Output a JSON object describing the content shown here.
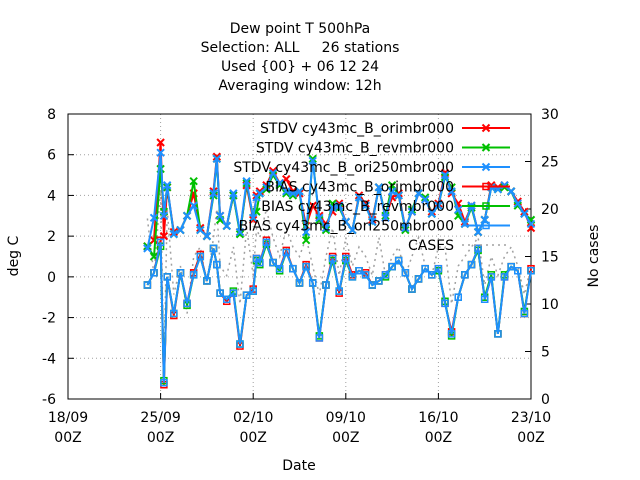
{
  "chart_data": {
    "type": "line",
    "title": [
      "Dew point T 500hPa",
      "Selection: ALL     26 stations",
      "Used {00} + 06 12 24",
      "Averaging window: 12h"
    ],
    "xlabel": "Date",
    "ylabel": "deg C",
    "y2label": "No cases",
    "ylim": [
      -6,
      8
    ],
    "y2lim": [
      0,
      30
    ],
    "yticks": [
      -6,
      -4,
      -2,
      0,
      2,
      4,
      6,
      8
    ],
    "y2ticks": [
      0,
      5,
      10,
      15,
      20,
      25,
      30
    ],
    "x_ticks": [
      {
        "day": 0,
        "line1": "18/09",
        "line2": "00Z"
      },
      {
        "day": 7,
        "line1": "25/09",
        "line2": "00Z"
      },
      {
        "day": 14,
        "line1": "02/10",
        "line2": "00Z"
      },
      {
        "day": 21,
        "line1": "09/10",
        "line2": "00Z"
      },
      {
        "day": 28,
        "line1": "16/10",
        "line2": "00Z"
      },
      {
        "day": 35,
        "line1": "23/10",
        "line2": "00Z"
      }
    ],
    "xlim_days": [
      0,
      35
    ],
    "legend_position": "top-right",
    "x_days": [
      6,
      6.5,
      7,
      7.25,
      7.5,
      8,
      8.5,
      9,
      9.5,
      10,
      10.5,
      11,
      11.25,
      11.5,
      12,
      12.5,
      13,
      13.5,
      14,
      14.25,
      14.5,
      15,
      15.5,
      16,
      16.5,
      17,
      17.5,
      18,
      18.5,
      19,
      19.5,
      20,
      20.5,
      21,
      21.5,
      22,
      22.5,
      23,
      23.5,
      24,
      24.5,
      25,
      25.5,
      26,
      26.5,
      27,
      27.5,
      28,
      28.5,
      29,
      29.5,
      30,
      30.5,
      31,
      31.5,
      32,
      32.5,
      33,
      33.5,
      34,
      34.5,
      35
    ],
    "series": [
      {
        "name": "STDV cy43mc_B_orimbr000",
        "color": "#ff0000",
        "marker": "x",
        "axis": "y",
        "values": [
          1.5,
          1.8,
          6.6,
          2.0,
          4.4,
          2.2,
          2.3,
          3.0,
          4.1,
          2.4,
          2.0,
          4.2,
          5.9,
          3.0,
          2.5,
          4.0,
          2.2,
          4.5,
          2.8,
          4.0,
          4.2,
          4.5,
          5.2,
          4.6,
          4.8,
          4.2,
          4.1,
          2.5,
          3.5,
          3.0,
          2.6,
          3.2,
          3.6,
          2.7,
          2.3,
          4.0,
          3.6,
          2.8,
          4.4,
          2.9,
          3.9,
          4.1,
          2.4,
          3.2,
          4.1,
          3.8,
          3.2,
          3.6,
          5.1,
          4.1,
          3.6,
          2.7,
          3.5,
          2.2,
          2.8,
          4.5,
          4.4,
          4.5,
          4.2,
          3.7,
          3.2,
          2.4
        ]
      },
      {
        "name": "STDV cy43mc_B_revmbr000",
        "color": "#00c000",
        "marker": "x",
        "axis": "y",
        "values": [
          1.5,
          1.0,
          5.3,
          3.2,
          4.4,
          2.1,
          2.3,
          3.0,
          4.7,
          2.3,
          2.0,
          4.0,
          5.8,
          2.8,
          2.5,
          4.0,
          2.1,
          4.6,
          2.9,
          3.2,
          4.1,
          4.3,
          5.0,
          4.5,
          4.1,
          4.0,
          4.2,
          1.8,
          5.8,
          2.8,
          2.3,
          3.6,
          3.4,
          2.7,
          2.3,
          3.9,
          3.5,
          2.7,
          4.4,
          3.0,
          4.5,
          4.0,
          2.3,
          3.3,
          4.1,
          3.9,
          3.1,
          3.5,
          4.9,
          4.4,
          3.0,
          2.6,
          3.4,
          2.2,
          2.8,
          4.4,
          4.3,
          4.4,
          4.2,
          3.5,
          3.1,
          2.8
        ]
      },
      {
        "name": "STDV cy43mc_B_ori250mbr000",
        "color": "#1e90ff",
        "marker": "x",
        "axis": "y",
        "values": [
          1.4,
          2.9,
          6.1,
          3.0,
          4.5,
          2.1,
          2.3,
          3.0,
          3.5,
          2.3,
          2.0,
          4.1,
          5.8,
          3.0,
          2.5,
          4.1,
          2.2,
          4.7,
          2.9,
          3.9,
          4.1,
          4.4,
          5.1,
          4.6,
          4.2,
          4.1,
          4.2,
          2.2,
          5.7,
          2.9,
          2.4,
          3.4,
          3.5,
          2.7,
          2.3,
          3.9,
          3.5,
          2.7,
          4.4,
          2.9,
          4.2,
          4.0,
          2.4,
          3.2,
          4.1,
          3.8,
          3.1,
          3.5,
          5.0,
          4.2,
          3.3,
          2.6,
          3.5,
          2.2,
          2.8,
          4.4,
          4.3,
          4.5,
          4.2,
          3.6,
          3.1,
          2.6
        ]
      },
      {
        "name": "BIAS cy43mc_B_orimbr000",
        "color": "#ff0000",
        "marker": "square",
        "axis": "y",
        "values": [
          -0.4,
          0.2,
          1.8,
          -5.3,
          0.0,
          -1.9,
          0.2,
          -1.3,
          0.2,
          1.1,
          -0.2,
          1.4,
          0.6,
          -0.8,
          -1.2,
          -0.8,
          -3.4,
          -0.9,
          -0.6,
          0.9,
          0.7,
          1.8,
          0.7,
          0.4,
          1.3,
          0.4,
          -0.3,
          0.6,
          -0.3,
          -3.0,
          -0.4,
          1.0,
          -0.8,
          1.0,
          0.1,
          0.3,
          0.2,
          -0.4,
          -0.2,
          0.1,
          0.5,
          0.8,
          0.2,
          -0.6,
          -0.1,
          0.4,
          0.1,
          0.4,
          -1.3,
          -2.7,
          -1.0,
          0.1,
          0.6,
          1.4,
          -1.1,
          0.0,
          -2.8,
          0.0,
          0.5,
          0.3,
          -1.8,
          0.4
        ]
      },
      {
        "name": "BIAS cy43mc_B_revmbr000",
        "color": "#00c000",
        "marker": "square",
        "axis": "y",
        "values": [
          -0.4,
          0.2,
          1.5,
          -5.1,
          0.0,
          -1.8,
          0.2,
          -1.4,
          0.1,
          1.0,
          -0.2,
          1.4,
          0.6,
          -0.8,
          -1.1,
          -0.7,
          -3.3,
          -0.9,
          -0.7,
          0.8,
          0.6,
          1.6,
          0.7,
          0.3,
          1.2,
          0.4,
          -0.3,
          0.5,
          -0.3,
          -2.9,
          -0.4,
          0.8,
          -0.7,
          0.8,
          0.0,
          0.3,
          0.1,
          -0.4,
          -0.2,
          0.0,
          0.5,
          0.8,
          0.2,
          -0.6,
          -0.1,
          0.4,
          0.1,
          0.3,
          -1.2,
          -2.9,
          -1.0,
          0.1,
          0.6,
          1.3,
          -1.0,
          0.1,
          -2.8,
          0.1,
          0.5,
          0.3,
          -1.7,
          0.3
        ]
      },
      {
        "name": "BIAS cy43mc_B_ori250mbr000",
        "color": "#1e90ff",
        "marker": "square",
        "axis": "y",
        "values": [
          -0.4,
          0.2,
          1.7,
          -5.2,
          0.0,
          -1.8,
          0.2,
          -1.3,
          0.1,
          1.0,
          -0.2,
          1.4,
          0.6,
          -0.8,
          -1.1,
          -0.8,
          -3.3,
          -0.9,
          -0.7,
          0.9,
          0.7,
          1.7,
          0.7,
          0.4,
          1.2,
          0.4,
          -0.3,
          0.5,
          -0.3,
          -3.0,
          -0.4,
          0.9,
          -0.7,
          0.9,
          0.0,
          0.3,
          0.1,
          -0.4,
          -0.2,
          0.1,
          0.5,
          0.8,
          0.2,
          -0.6,
          -0.1,
          0.4,
          0.1,
          0.4,
          -1.3,
          -2.8,
          -1.0,
          0.1,
          0.6,
          1.4,
          -1.1,
          0.0,
          -2.8,
          0.0,
          0.5,
          0.3,
          -1.8,
          0.3
        ]
      },
      {
        "name": "CASES",
        "color": "#a0a0a0",
        "marker": "none",
        "dashed": true,
        "axis": "y2",
        "values": [
          19,
          13,
          22,
          3,
          20,
          11,
          14,
          9,
          15,
          16,
          12,
          17,
          20,
          14,
          13,
          16,
          10,
          18,
          13,
          18,
          17,
          20,
          17,
          15,
          18,
          16,
          15,
          17,
          14,
          11,
          15,
          18,
          13,
          17,
          14,
          16,
          15,
          13,
          17,
          13,
          15,
          16,
          13,
          15,
          17,
          14,
          13,
          16,
          16,
          10,
          14,
          15,
          16,
          17,
          12,
          15,
          13,
          15,
          16,
          14,
          11,
          14
        ]
      }
    ]
  }
}
